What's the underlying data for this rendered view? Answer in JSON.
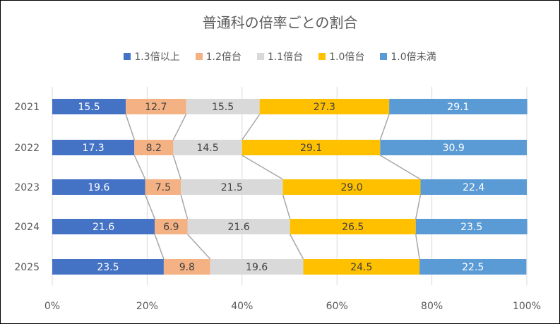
{
  "chart_data": {
    "type": "bar",
    "orientation": "horizontal",
    "stacked": "percent",
    "title": "普通科の倍率ごとの割合",
    "categories": [
      "2021",
      "2022",
      "2023",
      "2024",
      "2025"
    ],
    "series": [
      {
        "name": "1.3倍以上",
        "color": "#4472C4",
        "label_color": "#FFFFFF",
        "values": [
          15.5,
          17.3,
          19.6,
          21.6,
          23.5
        ]
      },
      {
        "name": "1.2倍台",
        "color": "#F4B183",
        "label_color": "#404040",
        "values": [
          12.7,
          8.2,
          7.5,
          6.9,
          9.8
        ]
      },
      {
        "name": "1.1倍台",
        "color": "#D9D9D9",
        "label_color": "#404040",
        "values": [
          15.5,
          14.5,
          21.5,
          21.6,
          19.6
        ]
      },
      {
        "name": "1.0倍台",
        "color": "#FFC000",
        "label_color": "#404040",
        "values": [
          27.3,
          29.1,
          29.0,
          26.5,
          24.5
        ]
      },
      {
        "name": "1.0倍未満",
        "color": "#5B9BD5",
        "label_color": "#FFFFFF",
        "values": [
          29.1,
          30.9,
          22.4,
          23.5,
          22.5
        ]
      }
    ],
    "x_ticks": [
      "0%",
      "20%",
      "40%",
      "60%",
      "80%",
      "100%"
    ],
    "xlim": [
      0,
      100
    ],
    "grid": "vertical",
    "series_lines": true,
    "legend": "top"
  }
}
